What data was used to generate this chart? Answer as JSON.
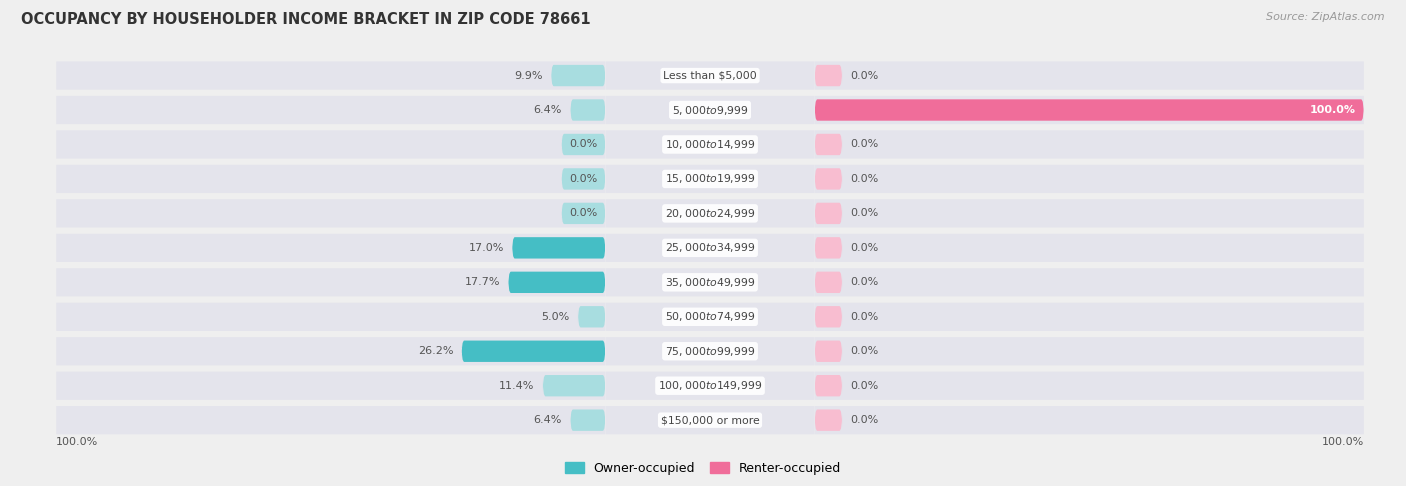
{
  "title": "OCCUPANCY BY HOUSEHOLDER INCOME BRACKET IN ZIP CODE 78661",
  "source": "Source: ZipAtlas.com",
  "categories": [
    "Less than $5,000",
    "$5,000 to $9,999",
    "$10,000 to $14,999",
    "$15,000 to $19,999",
    "$20,000 to $24,999",
    "$25,000 to $34,999",
    "$35,000 to $49,999",
    "$50,000 to $74,999",
    "$75,000 to $99,999",
    "$100,000 to $149,999",
    "$150,000 or more"
  ],
  "owner_pct": [
    9.9,
    6.4,
    0.0,
    0.0,
    0.0,
    17.0,
    17.7,
    5.0,
    26.2,
    11.4,
    6.4
  ],
  "renter_pct": [
    0.0,
    100.0,
    0.0,
    0.0,
    0.0,
    0.0,
    0.0,
    0.0,
    0.0,
    0.0,
    0.0
  ],
  "owner_color_strong": "#45bec5",
  "owner_color_light": "#a8dde0",
  "renter_color_strong": "#f06d9a",
  "renter_color_light": "#f8bdd0",
  "bg_color": "#efefef",
  "row_bg_color": "#e4e4ec",
  "row_bg_color_alt": "#eaeaf0",
  "title_color": "#333333",
  "source_color": "#999999",
  "label_color": "#444444",
  "value_color": "#555555",
  "white_value_color": "#ffffff",
  "bar_height": 0.62,
  "xlim": 100,
  "owner_strong_threshold": 14.0,
  "renter_strong_threshold": 50.0,
  "legend_owner": "Owner-occupied",
  "legend_renter": "Renter-occupied",
  "min_bar_for_strong": 14.0,
  "default_owner_stub": 8.0,
  "default_renter_stub": 5.0
}
